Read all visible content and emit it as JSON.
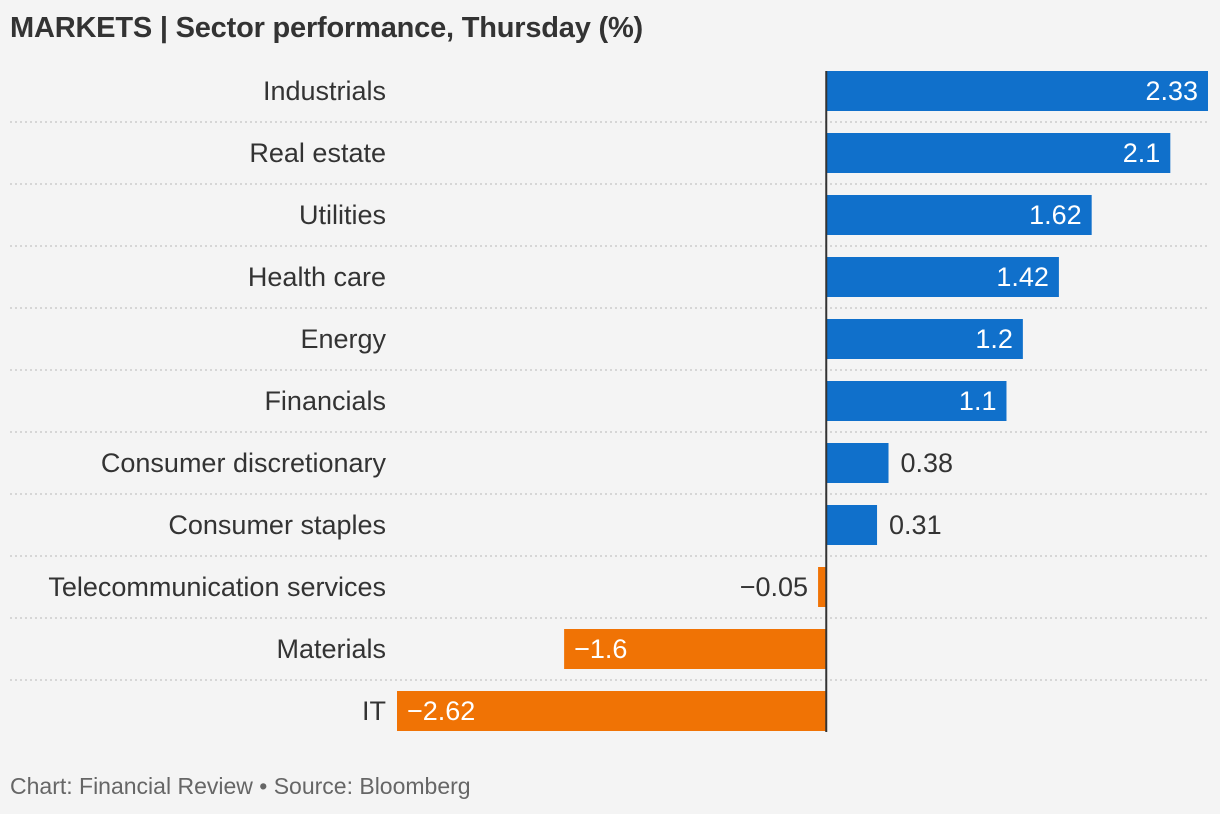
{
  "title": "MARKETS | Sector performance, Thursday (%)",
  "footer": "Chart: Financial Review • Source: Bloomberg",
  "colors": {
    "positive": "#1070cb",
    "negative": "#f07305",
    "background": "#f4f4f4",
    "text": "#333333",
    "gridline": "#cccccc",
    "axis": "#333333"
  },
  "chart_data": {
    "type": "bar",
    "orientation": "horizontal",
    "categories": [
      "Industrials",
      "Real estate",
      "Utilities",
      "Health care",
      "Energy",
      "Financials",
      "Consumer discretionary",
      "Consumer staples",
      "Telecommunication services",
      "Materials",
      "IT"
    ],
    "values": [
      2.33,
      2.1,
      1.62,
      1.42,
      1.2,
      1.1,
      0.38,
      0.31,
      -0.05,
      -1.6,
      -2.62
    ],
    "value_labels": [
      "2.33",
      "2.1",
      "1.62",
      "1.42",
      "1.2",
      "1.1",
      "0.38",
      "0.31",
      "−0.05",
      "−1.6",
      "−2.62"
    ],
    "xlim": [
      -2.62,
      2.33
    ],
    "data_labels": true,
    "grid": false,
    "legend": "none"
  }
}
